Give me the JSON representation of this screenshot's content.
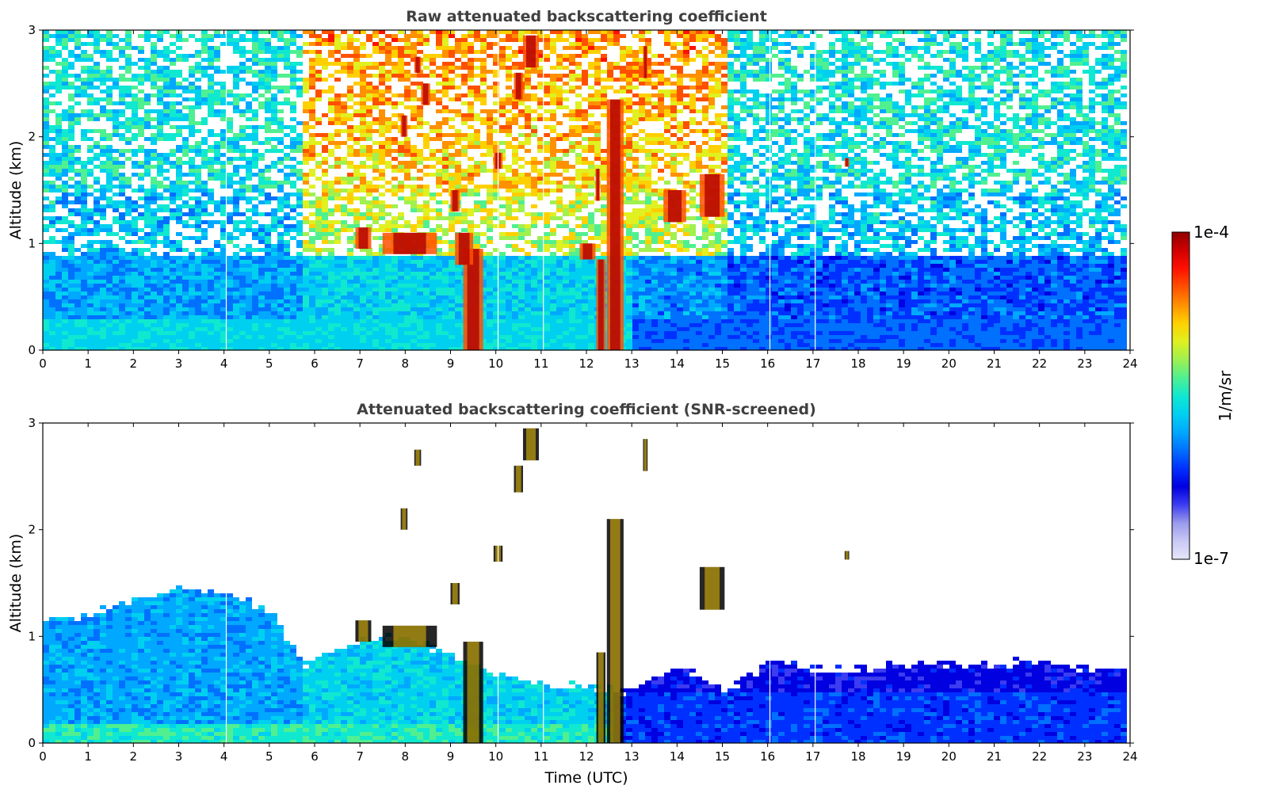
{
  "chart_data": [
    {
      "type": "heatmap",
      "title": "Raw attenuated backscattering coefficient",
      "xlabel": "",
      "ylabel": "Altitude (km)",
      "xlim": [
        0,
        24
      ],
      "ylim": [
        0,
        3
      ],
      "xticks": [
        "0",
        "1",
        "2",
        "3",
        "4",
        "5",
        "6",
        "7",
        "8",
        "9",
        "10",
        "11",
        "12",
        "13",
        "14",
        "15",
        "16",
        "17",
        "18",
        "19",
        "20",
        "21",
        "22",
        "23",
        "24"
      ],
      "yticks": [
        "0",
        "1",
        "2",
        "3"
      ],
      "data_end_hour": 23.83,
      "gaps_hours": [
        4.05,
        10.05,
        11.05,
        16.05,
        17.05
      ],
      "clouds": [
        {
          "x0": 9.28,
          "x1": 9.72,
          "y0": 0.0,
          "y1": 0.95
        },
        {
          "x0": 12.45,
          "x1": 12.82,
          "y0": 0.0,
          "y1": 2.35
        },
        {
          "x0": 12.22,
          "x1": 12.42,
          "y0": 0.0,
          "y1": 0.85
        },
        {
          "x0": 7.5,
          "x1": 8.7,
          "y0": 0.9,
          "y1": 1.1
        },
        {
          "x0": 6.9,
          "x1": 7.25,
          "y0": 0.95,
          "y1": 1.15
        },
        {
          "x0": 9.1,
          "x1": 9.5,
          "y0": 0.8,
          "y1": 1.1
        },
        {
          "x0": 11.85,
          "x1": 12.2,
          "y0": 0.85,
          "y1": 1.0
        },
        {
          "x0": 14.5,
          "x1": 15.05,
          "y0": 1.25,
          "y1": 1.65
        },
        {
          "x0": 13.7,
          "x1": 14.2,
          "y0": 1.2,
          "y1": 1.5
        },
        {
          "x0": 10.6,
          "x1": 10.95,
          "y0": 2.65,
          "y1": 2.95
        },
        {
          "x0": 10.4,
          "x1": 10.6,
          "y0": 2.35,
          "y1": 2.6
        },
        {
          "x0": 9.95,
          "x1": 10.15,
          "y0": 1.7,
          "y1": 1.85
        },
        {
          "x0": 8.2,
          "x1": 8.35,
          "y0": 2.6,
          "y1": 2.75
        },
        {
          "x0": 8.35,
          "x1": 8.55,
          "y0": 2.3,
          "y1": 2.5
        },
        {
          "x0": 7.9,
          "x1": 8.05,
          "y0": 2.0,
          "y1": 2.2
        },
        {
          "x0": 9.0,
          "x1": 9.2,
          "y0": 1.3,
          "y1": 1.5
        },
        {
          "x0": 12.2,
          "x1": 12.3,
          "y0": 1.4,
          "y1": 1.7
        },
        {
          "x0": 17.7,
          "x1": 17.8,
          "y0": 1.72,
          "y1": 1.8
        },
        {
          "x0": 13.25,
          "x1": 13.35,
          "y0": 2.55,
          "y1": 2.85
        }
      ]
    },
    {
      "type": "heatmap",
      "title": "Attenuated backscattering coefficient (SNR-screened)",
      "xlabel": "Time (UTC)",
      "ylabel": "Altitude (km)",
      "xlim": [
        0,
        24
      ],
      "ylim": [
        0,
        3
      ],
      "xticks": [
        "0",
        "1",
        "2",
        "3",
        "4",
        "5",
        "6",
        "7",
        "8",
        "9",
        "10",
        "11",
        "12",
        "13",
        "14",
        "15",
        "16",
        "17",
        "18",
        "19",
        "20",
        "21",
        "22",
        "23",
        "24"
      ],
      "yticks": [
        "0",
        "1",
        "2",
        "3"
      ],
      "data_end_hour": 23.83,
      "gaps_hours": [
        4.05,
        10.05,
        11.05,
        16.05,
        17.05
      ],
      "boundary_layer_top_km": [
        [
          0,
          1.18
        ],
        [
          1,
          1.22
        ],
        [
          2,
          1.38
        ],
        [
          3,
          1.48
        ],
        [
          4,
          1.42
        ],
        [
          5,
          1.25
        ],
        [
          5.7,
          0.75
        ],
        [
          6.5,
          0.9
        ],
        [
          7,
          1.0
        ],
        [
          8,
          1.0
        ],
        [
          9,
          0.85
        ],
        [
          10,
          0.65
        ],
        [
          11,
          0.55
        ],
        [
          12,
          0.55
        ],
        [
          13,
          0.5
        ],
        [
          14,
          0.75
        ],
        [
          15,
          0.5
        ],
        [
          16,
          0.78
        ],
        [
          17,
          0.7
        ],
        [
          18,
          0.72
        ],
        [
          19,
          0.75
        ],
        [
          20,
          0.75
        ],
        [
          21,
          0.75
        ],
        [
          22,
          0.8
        ],
        [
          23,
          0.72
        ],
        [
          23.83,
          0.72
        ]
      ],
      "clouds": [
        {
          "x0": 9.28,
          "x1": 9.72,
          "y0": 0.0,
          "y1": 0.95
        },
        {
          "x0": 12.45,
          "x1": 12.82,
          "y0": 0.0,
          "y1": 2.1
        },
        {
          "x0": 12.22,
          "x1": 12.42,
          "y0": 0.0,
          "y1": 0.85
        },
        {
          "x0": 7.5,
          "x1": 8.7,
          "y0": 0.9,
          "y1": 1.1
        },
        {
          "x0": 6.9,
          "x1": 7.25,
          "y0": 0.95,
          "y1": 1.15
        },
        {
          "x0": 14.5,
          "x1": 15.05,
          "y0": 1.25,
          "y1": 1.65
        },
        {
          "x0": 10.6,
          "x1": 10.95,
          "y0": 2.65,
          "y1": 2.95
        },
        {
          "x0": 10.4,
          "x1": 10.6,
          "y0": 2.35,
          "y1": 2.6
        },
        {
          "x0": 9.95,
          "x1": 10.15,
          "y0": 1.7,
          "y1": 1.85
        },
        {
          "x0": 8.2,
          "x1": 8.35,
          "y0": 2.6,
          "y1": 2.75
        },
        {
          "x0": 7.9,
          "x1": 8.05,
          "y0": 2.0,
          "y1": 2.2
        },
        {
          "x0": 9.0,
          "x1": 9.2,
          "y0": 1.3,
          "y1": 1.5
        },
        {
          "x0": 17.7,
          "x1": 17.8,
          "y0": 1.72,
          "y1": 1.8
        },
        {
          "x0": 13.25,
          "x1": 13.35,
          "y0": 2.55,
          "y1": 2.85
        }
      ]
    }
  ],
  "colorbar": {
    "label": "1/m/sr",
    "max_label": "1e-4",
    "min_label": "1e-7",
    "colormap": [
      "#e6e6fa",
      "#c8c8f5",
      "#9a9aee",
      "#3c3cf0",
      "#0000e0",
      "#0030ff",
      "#0070ff",
      "#00a8ff",
      "#00d0f0",
      "#10e8d0",
      "#50f090",
      "#a0f050",
      "#e0f020",
      "#ffd000",
      "#ff9000",
      "#ff5000",
      "#ff1000",
      "#d00000",
      "#900000"
    ]
  }
}
